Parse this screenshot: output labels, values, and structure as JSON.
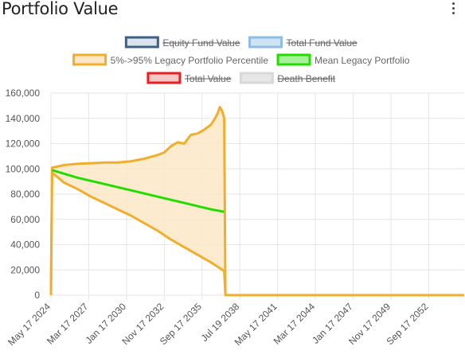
{
  "header": {
    "title": "Portfolio Value",
    "menu_icon": "vertical-dots-icon"
  },
  "chart_data": {
    "type": "line",
    "title": "Portfolio Value",
    "xlabel": "",
    "ylabel": "",
    "ylim": [
      0,
      160000
    ],
    "yticks": [
      0,
      20000,
      40000,
      60000,
      80000,
      100000,
      120000,
      140000,
      160000
    ],
    "ytick_labels": [
      "0",
      "20,000",
      "40,000",
      "60,000",
      "80,000",
      "100,000",
      "120,000",
      "140,000",
      "160,000"
    ],
    "xlim": [
      "2024-05-17",
      "2055-05-17"
    ],
    "xticks": [
      "2024-05-17",
      "2027-03-17",
      "2030-01-17",
      "2032-11-17",
      "2035-09-17",
      "2038-07-19",
      "2041-05-17",
      "2044-03-17",
      "2047-01-17",
      "2049-11-17",
      "2052-09-17"
    ],
    "xtick_labels": [
      "May 17 2024",
      "Mar 17 2027",
      "Jan 17 2030",
      "Nov 17 2032",
      "Sep 17 2035",
      "Jul 19 2038",
      "May 17 2041",
      "Mar 17 2044",
      "Jan 17 2047",
      "Nov 17 2049",
      "Sep 17 2052"
    ],
    "grid": true,
    "legend_position": "top",
    "legend": [
      {
        "label": "Equity Fund Value",
        "hidden": true,
        "fill": "#dbe3ec",
        "stroke": "#3e5f86"
      },
      {
        "label": "Total Fund Value",
        "hidden": true,
        "fill": "#cfe3f3",
        "stroke": "#8fbde3"
      },
      {
        "label": "5%->95% Legacy Portfolio Percentile",
        "hidden": false,
        "fill": "#fce8c6",
        "stroke": "#f0ae2c"
      },
      {
        "label": "Mean Legacy Portfolio",
        "hidden": false,
        "fill": "#a8f09a",
        "stroke": "#22dd00"
      },
      {
        "label": "Total Value",
        "hidden": true,
        "fill": "#f6c7c7",
        "stroke": "#e8201f"
      },
      {
        "label": "Death Benefit",
        "hidden": true,
        "fill": "#e6e6e6",
        "stroke": "#d8d8d8"
      }
    ],
    "series": [
      {
        "name": "95% Legacy Portfolio Percentile",
        "color": "#f0ae2c",
        "x": [
          "2024-05-17",
          "2024-06-17",
          "2025-05-17",
          "2026-05-17",
          "2027-05-17",
          "2028-05-17",
          "2029-05-17",
          "2030-05-17",
          "2031-05-17",
          "2032-05-17",
          "2032-11-17",
          "2033-05-17",
          "2033-11-17",
          "2034-05-17",
          "2034-11-17",
          "2035-05-17",
          "2035-11-17",
          "2036-05-17",
          "2036-08-17",
          "2036-11-17",
          "2037-01-17",
          "2037-03-17",
          "2037-05-17",
          "2037-06-17"
        ],
        "y": [
          0,
          101000,
          103000,
          104000,
          104500,
          105000,
          105000,
          106000,
          108000,
          111000,
          113000,
          118000,
          121000,
          120000,
          127000,
          128000,
          131000,
          135000,
          139000,
          144000,
          149000,
          146000,
          140000,
          0
        ]
      },
      {
        "name": "5% Legacy Portfolio Percentile",
        "color": "#f0ae2c",
        "x": [
          "2024-05-17",
          "2024-06-17",
          "2025-05-17",
          "2026-05-17",
          "2027-05-17",
          "2028-05-17",
          "2029-05-17",
          "2030-05-17",
          "2031-05-17",
          "2032-05-17",
          "2033-05-17",
          "2034-05-17",
          "2035-05-17",
          "2036-05-17",
          "2037-05-17",
          "2037-06-17",
          "2055-05-17"
        ],
        "y": [
          0,
          97000,
          89000,
          84000,
          78000,
          73000,
          68000,
          63000,
          57000,
          51000,
          44000,
          38000,
          32000,
          26000,
          19000,
          0,
          0
        ]
      },
      {
        "name": "Mean Legacy Portfolio",
        "color": "#22dd00",
        "x": [
          "2024-06-17",
          "2026-05-17",
          "2028-05-17",
          "2030-05-17",
          "2032-05-17",
          "2034-05-17",
          "2036-05-17",
          "2037-05-17"
        ],
        "y": [
          99000,
          93000,
          88000,
          83000,
          78000,
          73000,
          68000,
          66000
        ]
      }
    ]
  }
}
